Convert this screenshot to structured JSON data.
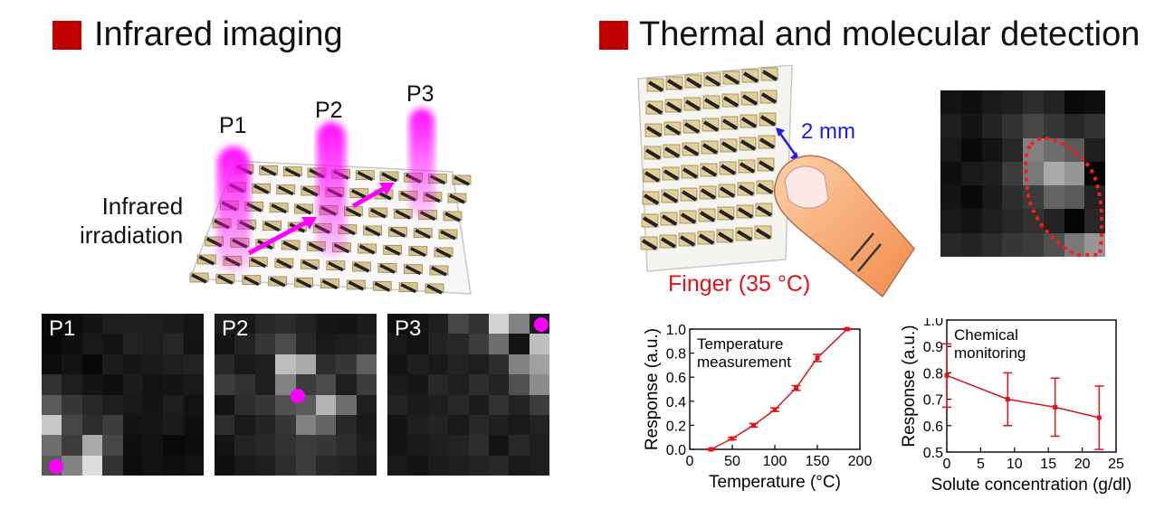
{
  "colors": {
    "accent_square": "#c00000",
    "magenta": "#ff00ff",
    "red": "#e0131a",
    "blue": "#1a1aff"
  },
  "left_section": {
    "title": "Infrared imaging",
    "irradiation_label_line1": "Infrared",
    "irradiation_label_line2": "irradiation",
    "beam_labels": [
      "P1",
      "P2",
      "P3"
    ],
    "maps": [
      {
        "label": "P1",
        "grid": [
          [
            10,
            12,
            20,
            30,
            32,
            30,
            28,
            22
          ],
          [
            8,
            15,
            25,
            20,
            35,
            30,
            38,
            20
          ],
          [
            12,
            20,
            8,
            28,
            22,
            25,
            30,
            35
          ],
          [
            50,
            30,
            20,
            15,
            28,
            18,
            20,
            25
          ],
          [
            90,
            55,
            40,
            30,
            25,
            20,
            30,
            18
          ],
          [
            200,
            70,
            45,
            60,
            20,
            22,
            28,
            15
          ],
          [
            110,
            60,
            170,
            70,
            15,
            18,
            10,
            12
          ],
          [
            90,
            130,
            220,
            50,
            12,
            20,
            15,
            18
          ]
        ]
      },
      {
        "label": "P2",
        "grid": [
          [
            30,
            25,
            40,
            45,
            35,
            22,
            20,
            28
          ],
          [
            20,
            35,
            55,
            75,
            40,
            25,
            30,
            35
          ],
          [
            40,
            25,
            30,
            190,
            170,
            45,
            55,
            95
          ],
          [
            60,
            50,
            30,
            130,
            60,
            75,
            30,
            60
          ],
          [
            20,
            45,
            55,
            80,
            90,
            180,
            110,
            30
          ],
          [
            45,
            25,
            35,
            55,
            130,
            100,
            40,
            25
          ],
          [
            20,
            35,
            40,
            50,
            60,
            55,
            45,
            30
          ],
          [
            15,
            25,
            30,
            45,
            60,
            40,
            35,
            25
          ]
        ]
      },
      {
        "label": "P3",
        "grid": [
          [
            15,
            20,
            30,
            70,
            50,
            210,
            130,
            30
          ],
          [
            25,
            18,
            35,
            40,
            60,
            110,
            20,
            190
          ],
          [
            20,
            30,
            25,
            35,
            30,
            45,
            130,
            160
          ],
          [
            28,
            22,
            40,
            30,
            45,
            35,
            80,
            140
          ],
          [
            35,
            25,
            30,
            40,
            28,
            50,
            35,
            60
          ],
          [
            20,
            30,
            35,
            25,
            40,
            30,
            25,
            35
          ],
          [
            18,
            25,
            30,
            35,
            45,
            20,
            40,
            30
          ],
          [
            25,
            20,
            28,
            30,
            35,
            40,
            25,
            30
          ]
        ]
      }
    ]
  },
  "right_section": {
    "title": "Thermal and molecular detection",
    "pitch_label": "2 mm",
    "finger_label": "Finger (35 °C)",
    "thermal_map": {
      "grid": [
        [
          20,
          15,
          25,
          30,
          45,
          35,
          10,
          15
        ],
        [
          30,
          20,
          35,
          50,
          70,
          55,
          40,
          50
        ],
        [
          25,
          10,
          20,
          40,
          130,
          110,
          90,
          30
        ],
        [
          15,
          25,
          30,
          60,
          120,
          170,
          150,
          5
        ],
        [
          20,
          10,
          25,
          45,
          60,
          100,
          90,
          35
        ],
        [
          25,
          20,
          30,
          40,
          50,
          35,
          5,
          40
        ],
        [
          40,
          35,
          45,
          55,
          60,
          80,
          120,
          150
        ]
      ]
    }
  },
  "chart_data": [
    {
      "type": "line",
      "title": "Temperature measurement",
      "annotation_line1": "Temperature",
      "annotation_line2": "measurement",
      "xlabel": "Temperature (°C)",
      "ylabel": "Response (a.u.)",
      "xlim": [
        0,
        200
      ],
      "ylim": [
        0.0,
        1.0
      ],
      "xticks": [
        "0",
        "50",
        "100",
        "150",
        "200"
      ],
      "yticks": [
        "0.0",
        "0.2",
        "0.4",
        "0.6",
        "0.8",
        "1.0"
      ],
      "x": [
        25,
        50,
        75,
        100,
        125,
        150,
        185
      ],
      "y": [
        0.0,
        0.09,
        0.2,
        0.33,
        0.51,
        0.76,
        1.0
      ],
      "yerr": [
        0.005,
        0.01,
        0.015,
        0.015,
        0.02,
        0.03,
        0.005
      ]
    },
    {
      "type": "line",
      "title": "Chemical monitoring",
      "annotation_line1": "Chemical",
      "annotation_line2": "monitoring",
      "xlabel": "Solute concentration (g/dl)",
      "ylabel": "Response (a.u.)",
      "xlim": [
        0,
        25
      ],
      "ylim": [
        0.5,
        1.0
      ],
      "xticks": [
        "0",
        "5",
        "10",
        "15",
        "20",
        "25"
      ],
      "yticks": [
        "0.5",
        "0.6",
        "0.7",
        "0.8",
        "0.9",
        "1.0"
      ],
      "x": [
        0,
        9,
        16,
        22.5
      ],
      "y": [
        0.79,
        0.7,
        0.67,
        0.63
      ],
      "yerr": [
        0.12,
        0.1,
        0.11,
        0.12
      ]
    }
  ]
}
